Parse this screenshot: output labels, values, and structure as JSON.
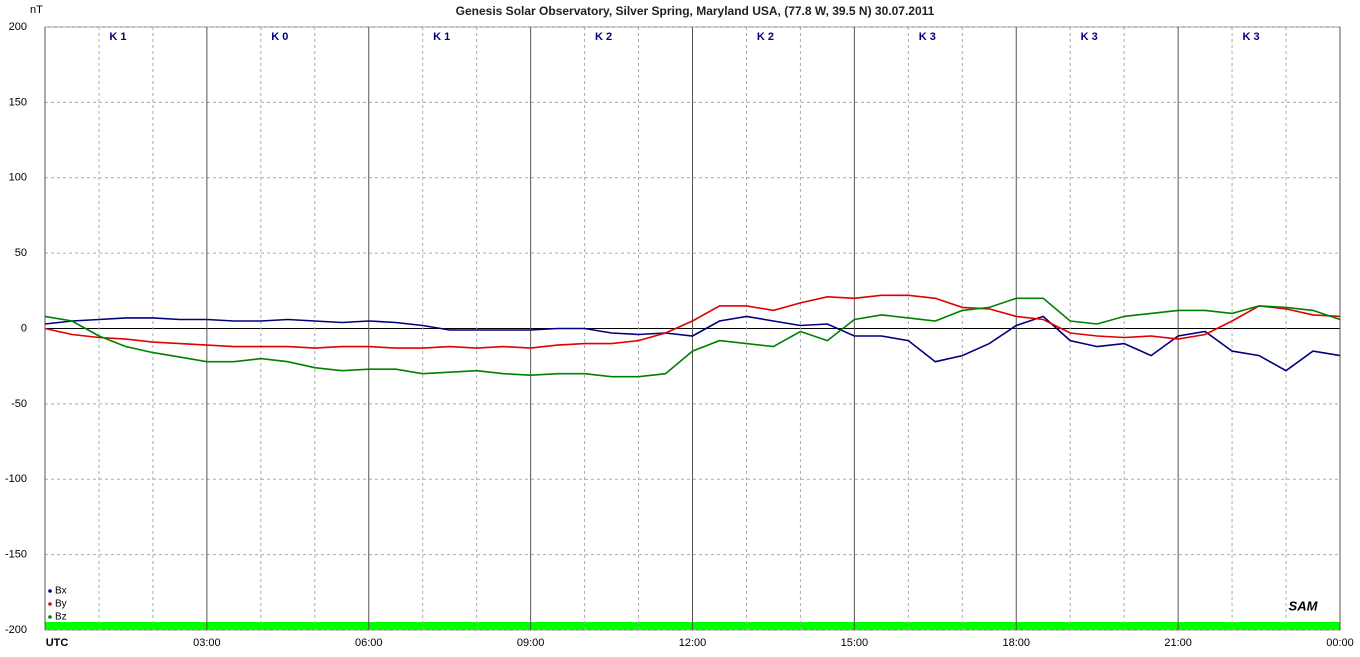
{
  "chart_data": {
    "type": "line",
    "title": "Genesis Solar Observatory, Silver Spring, Maryland USA, (77.8 W, 39.5 N)  30.07.2011",
    "y_label": "nT",
    "logo": "SAM",
    "k_indices": [
      "K 1",
      "K 0",
      "K 1",
      "K 2",
      "K 2",
      "K 3",
      "K 3",
      "K 3"
    ],
    "x": [
      0,
      0.5,
      1,
      1.5,
      2,
      2.5,
      3,
      3.5,
      4,
      4.5,
      5,
      5.5,
      6,
      6.5,
      7,
      7.5,
      8,
      8.5,
      9,
      9.5,
      10,
      10.5,
      11,
      11.5,
      12,
      12.5,
      13,
      13.5,
      14,
      14.5,
      15,
      15.5,
      16,
      16.5,
      17,
      17.5,
      18,
      18.5,
      19,
      19.5,
      20,
      20.5,
      21,
      21.5,
      22,
      22.5,
      23,
      23.5,
      24
    ],
    "series": [
      {
        "name": "Bx",
        "color": "#000080",
        "values": [
          3,
          5,
          6,
          7,
          7,
          6,
          6,
          5,
          5,
          6,
          5,
          4,
          5,
          4,
          2,
          -1,
          -1,
          -1,
          -1,
          0,
          0,
          -3,
          -4,
          -3,
          -5,
          5,
          8,
          5,
          2,
          3,
          -5,
          -5,
          -8,
          -22,
          -18,
          -10,
          2,
          8,
          -8,
          -12,
          -10,
          -18,
          -5,
          -2,
          -15,
          -18,
          -28,
          -15,
          -18
        ]
      },
      {
        "name": "By",
        "color": "#e00000",
        "values": [
          0,
          -4,
          -6,
          -7,
          -9,
          -10,
          -11,
          -12,
          -12,
          -12,
          -13,
          -12,
          -12,
          -13,
          -13,
          -12,
          -13,
          -12,
          -13,
          -11,
          -10,
          -10,
          -8,
          -3,
          5,
          15,
          15,
          12,
          17,
          21,
          20,
          22,
          22,
          20,
          14,
          13,
          8,
          6,
          -3,
          -5,
          -6,
          -5,
          -7,
          -4,
          5,
          15,
          13,
          9,
          8
        ]
      },
      {
        "name": "Bz",
        "color": "#008000",
        "values": [
          8,
          5,
          -5,
          -12,
          -16,
          -19,
          -22,
          -22,
          -20,
          -22,
          -26,
          -28,
          -27,
          -27,
          -30,
          -29,
          -28,
          -30,
          -31,
          -30,
          -30,
          -32,
          -32,
          -30,
          -15,
          -8,
          -10,
          -12,
          -2,
          -8,
          6,
          9,
          7,
          5,
          12,
          14,
          20,
          20,
          5,
          3,
          8,
          10,
          12,
          12,
          10,
          15,
          14,
          12,
          6
        ]
      }
    ],
    "xlim": [
      0,
      24
    ],
    "xticks": [
      {
        "value": 0,
        "label": "UTC"
      },
      {
        "value": 3,
        "label": "03:00"
      },
      {
        "value": 6,
        "label": "06:00"
      },
      {
        "value": 9,
        "label": "09:00"
      },
      {
        "value": 12,
        "label": "12:00"
      },
      {
        "value": 15,
        "label": "15:00"
      },
      {
        "value": 18,
        "label": "18:00"
      },
      {
        "value": 21,
        "label": "21:00"
      },
      {
        "value": 24,
        "label": "00:00"
      }
    ],
    "x_minor_grid": [
      1,
      2,
      4,
      5,
      7,
      8,
      10,
      11,
      13,
      14,
      16,
      17,
      19,
      20,
      22,
      23
    ],
    "ylim": [
      -200,
      200
    ],
    "yticks": [
      -200,
      -150,
      -100,
      -50,
      0,
      50,
      100,
      150,
      200
    ],
    "grid": true,
    "legend": "bottom-left"
  }
}
